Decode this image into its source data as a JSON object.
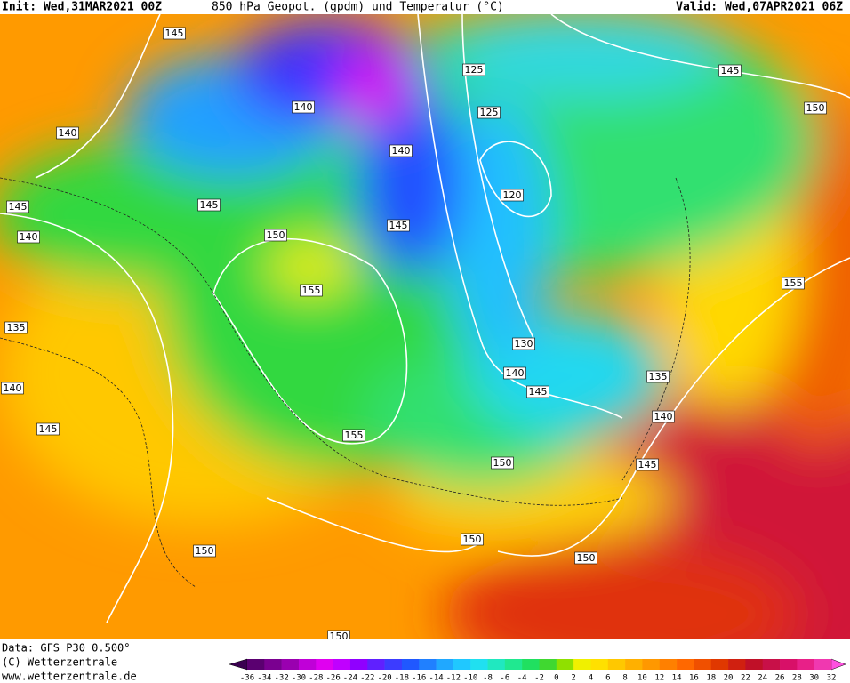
{
  "header": {
    "init": "Init: Wed,31MAR2021 00Z",
    "title": "850 hPa Geopot. (gpdm) und Temperatur (°C)",
    "valid": "Valid: Wed,07APR2021 06Z"
  },
  "footer": {
    "data": "Data: GFS P30 0.500°",
    "copyright": "(C) Wetterzentrale",
    "url": "www.wetterzentrale.de"
  },
  "contour_labels": [
    "145",
    "140",
    "145",
    "140",
    "135",
    "140",
    "145",
    "140",
    "145",
    "150",
    "155",
    "155",
    "150",
    "125",
    "125",
    "140",
    "145",
    "120",
    "130",
    "140",
    "145",
    "150",
    "150",
    "150",
    "145",
    "140",
    "135",
    "155",
    "150",
    "145",
    "150"
  ],
  "colorbar": {
    "labels": [
      -36,
      -34,
      -32,
      -30,
      -28,
      -26,
      -24,
      -22,
      -20,
      -18,
      -16,
      -14,
      -12,
      -10,
      -8,
      -6,
      -4,
      -2,
      0,
      2,
      4,
      6,
      8,
      10,
      12,
      14,
      16,
      18,
      20,
      22,
      24,
      26,
      28,
      30,
      32
    ],
    "under_color": "#3a0050",
    "over_color": "#ff50e0",
    "colors": [
      "#5a0070",
      "#7a0090",
      "#9a00b0",
      "#c000d8",
      "#e000f0",
      "#c000ff",
      "#9000ff",
      "#6020ff",
      "#3c3cff",
      "#2058ff",
      "#2080ff",
      "#20a8ff",
      "#20c8ff",
      "#20e0f0",
      "#20e8c0",
      "#20e890",
      "#20e060",
      "#40d830",
      "#90e000",
      "#f0f000",
      "#ffe000",
      "#ffc800",
      "#ffb000",
      "#ff9800",
      "#ff8000",
      "#ff6800",
      "#f05000",
      "#e03800",
      "#d02010",
      "#c01028",
      "#c81048",
      "#d81068",
      "#e82088",
      "#f038b0"
    ]
  }
}
